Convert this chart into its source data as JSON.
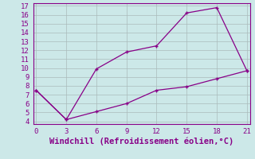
{
  "xlabel": "Windchill (Refroidissement éolien,°C)",
  "bg_color": "#cce8e8",
  "line_color": "#880088",
  "grid_color": "#aabbbb",
  "x_upper": [
    0,
    3,
    6,
    9,
    12,
    15,
    18,
    21
  ],
  "y_upper": [
    7.5,
    4.2,
    9.9,
    11.8,
    12.5,
    16.2,
    16.8,
    9.7
  ],
  "x_lower": [
    0,
    3,
    6,
    9,
    12,
    15,
    18,
    21
  ],
  "y_lower": [
    7.5,
    4.2,
    5.1,
    6.0,
    7.5,
    7.9,
    8.8,
    9.7
  ],
  "xlim": [
    -0.3,
    21.3
  ],
  "ylim": [
    3.7,
    17.3
  ],
  "xticks": [
    0,
    3,
    6,
    9,
    12,
    15,
    18,
    21
  ],
  "yticks": [
    4,
    5,
    6,
    7,
    8,
    9,
    10,
    11,
    12,
    13,
    14,
    15,
    16,
    17
  ],
  "tick_fontsize": 6.5,
  "xlabel_fontsize": 7.5,
  "marker_size": 3.5,
  "line_width": 0.9
}
